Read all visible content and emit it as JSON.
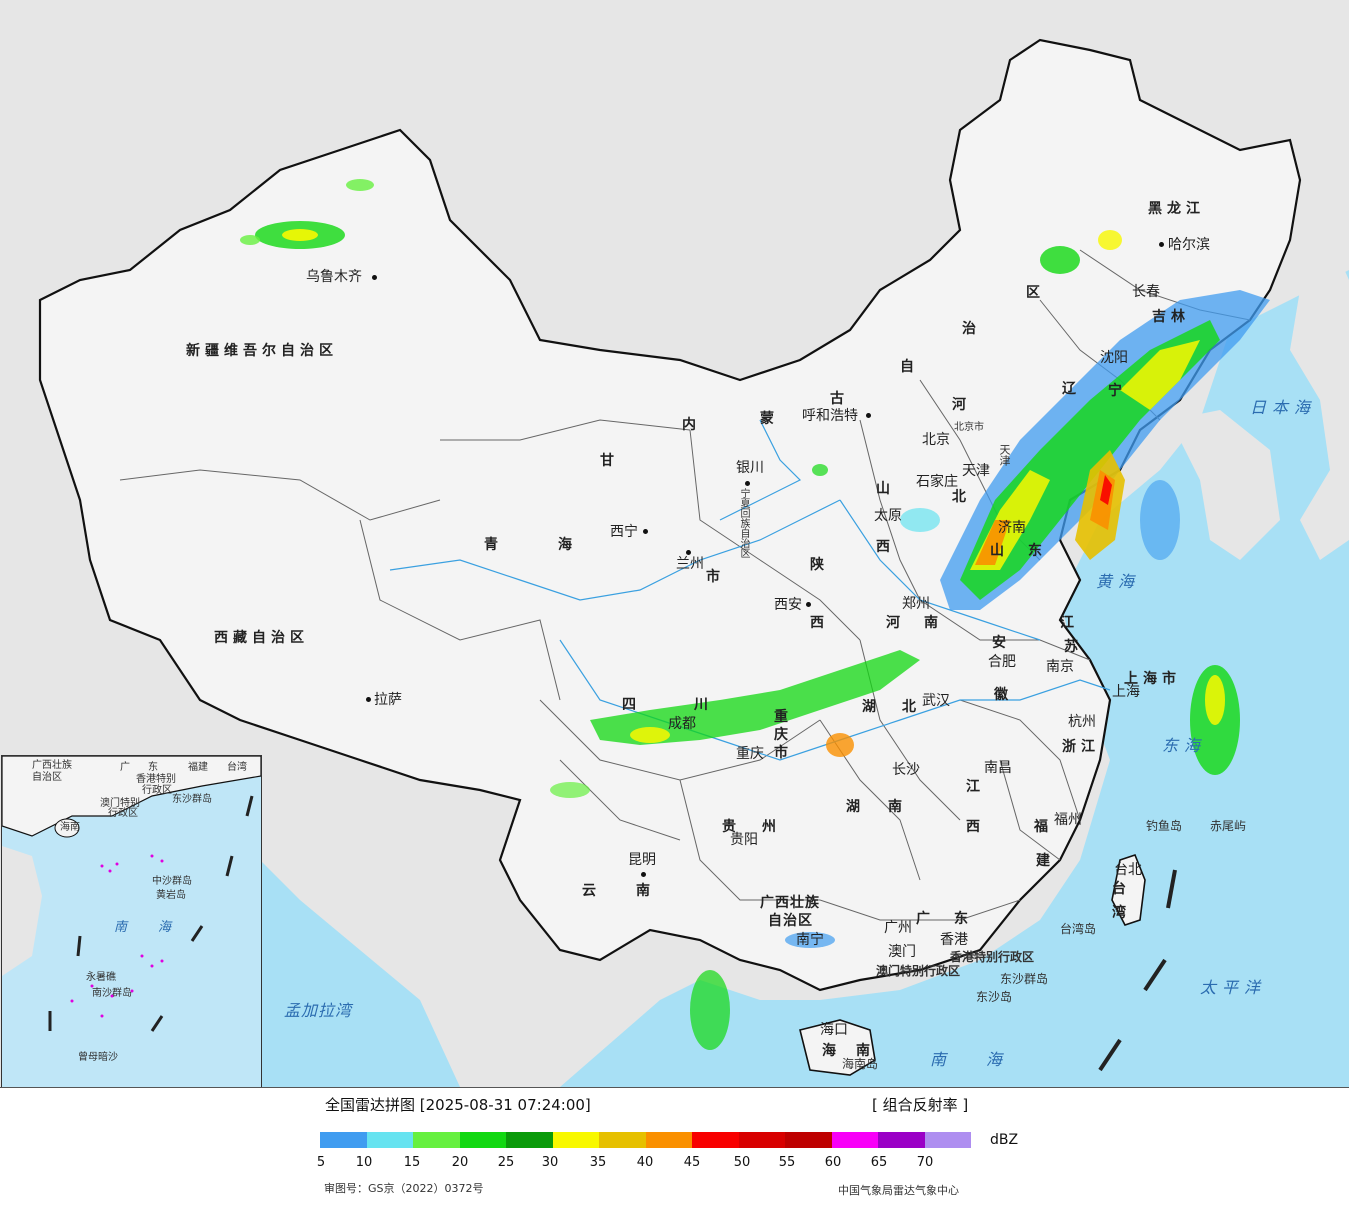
{
  "colors": {
    "sea": "#a8e0f5",
    "land_outside": "#e6e6e6",
    "china_land": "#f4f4f4",
    "border": "#111111",
    "river": "#3aa0e0"
  },
  "provinces": {
    "xinjiang": "新疆维吾尔自治区",
    "xizang": "西藏自治区",
    "qinghai_1": "青",
    "qinghai_2": "海",
    "gansu": "甘",
    "neimenggu_1": "内",
    "neimenggu_2": "蒙",
    "neimenggu_3": "古",
    "neimenggu_4": "自",
    "neimenggu_5": "治",
    "neimenggu_6": "区",
    "heilongjiang": "黑龙江",
    "jilin": "吉林",
    "liaoning_1": "辽",
    "liaoning_2": "宁",
    "hebei_1": "河",
    "hebei_2": "北",
    "shanxi_1": "山",
    "shanxi_2": "西",
    "shaanxi_1": "陕",
    "shaanxi_2": "西",
    "shandong_1": "山",
    "shandong_2": "东",
    "henan_1": "河",
    "henan_2": "南",
    "jiangsu_1": "江",
    "jiangsu_2": "苏",
    "anhui_1": "安",
    "anhui_2": "徽",
    "shanghai": "上海市",
    "zhejiang": "浙江",
    "hubei_1": "湖",
    "hubei_2": "北",
    "hunan_1": "湖",
    "hunan_2": "南",
    "jiangxi_1": "江",
    "jiangxi_2": "西",
    "fujian_1": "福",
    "fujian_2": "建",
    "sichuan_1": "四",
    "sichuan_2": "川",
    "chongqing_1": "重",
    "chongqing_2": "庆",
    "chongqing_3": "市",
    "guizhou_1": "贵",
    "guizhou_2": "州",
    "yunnan_1": "云",
    "yunnan_2": "南",
    "guangxi_1": "广西壮族",
    "guangxi_2": "自治区",
    "guangdong_1": "广",
    "guangdong_2": "东",
    "hainan_1": "海",
    "hainan_2": "南",
    "taiwan_1": "台",
    "taiwan_2": "湾",
    "ningxia": "宁夏回族自治区",
    "gansu_shi": "市",
    "tianjin": "天津",
    "beijing": "北京市",
    "hongkong": "香港特别行政区",
    "macau": "澳门特别行政区"
  },
  "cities": {
    "urumqi": "乌鲁木齐",
    "lhasa": "拉萨",
    "xining": "西宁",
    "lanzhou": "兰州",
    "yinchuan": "银川",
    "hohhot": "呼和浩特",
    "beijing": "北京",
    "tianjin": "天津",
    "shijiazhuang": "石家庄",
    "taiyuan": "太原",
    "xian": "西安",
    "zhengzhou": "郑州",
    "jinan": "济南",
    "shenyang": "沈阳",
    "changchun": "长春",
    "harbin": "哈尔滨",
    "hefei": "合肥",
    "nanjing": "南京",
    "shanghai": "上海",
    "hangzhou": "杭州",
    "wuhan": "武汉",
    "changsha": "长沙",
    "nanchang": "南昌",
    "fuzhou": "福州",
    "taipei": "台北",
    "chengdu": "成都",
    "chongqing": "重庆",
    "guiyang": "贵阳",
    "kunming": "昆明",
    "nanning": "南宁",
    "guangzhou": "广州",
    "macau": "澳门",
    "hongkong": "香港",
    "haikou": "海口"
  },
  "islands": {
    "diaoyu": "钓鱼岛",
    "chiwei": "赤尾屿",
    "taiwan_dao": "台湾岛",
    "dongsha_qundao": "东沙群岛",
    "dongsha_dao": "东沙岛",
    "hainan_dao": "海南岛"
  },
  "seas": {
    "japan_sea": "日本海",
    "huanghai": "黄海",
    "donghai": "东海",
    "taipingyang": "太平洋",
    "nanhai": "南海",
    "mengjiala": "孟加拉湾"
  },
  "inset": {
    "labels": [
      "广西壮族",
      "自治区",
      "广",
      "东",
      "福建",
      "台湾",
      "香港特别",
      "行政区",
      "澳门特别",
      "行政区",
      "东沙群岛",
      "海南",
      "中沙群岛",
      "黄岩岛",
      "南",
      "海",
      "永暑礁",
      "南沙群岛",
      "曾母暗沙"
    ]
  },
  "legend": {
    "title": "全国雷达拼图 [2025-08-31 07:24:00]",
    "product": "[ 组合反射率 ]",
    "unit": "dBZ",
    "scale_colors": [
      "#409cf0",
      "#66e3f0",
      "#66f040",
      "#12d812",
      "#0a9a0a",
      "#f8f800",
      "#e6c000",
      "#fa9000",
      "#f80000",
      "#d80000",
      "#be0000",
      "#f800f8",
      "#9a00c6",
      "#ae8ef0"
    ],
    "ticks": [
      "5",
      "10",
      "15",
      "20",
      "25",
      "30",
      "35",
      "40",
      "45",
      "50",
      "55",
      "60",
      "65",
      "70"
    ],
    "approval": "审图号：GS京（2022）0372号",
    "source": "中国气象局雷达气象中心"
  }
}
